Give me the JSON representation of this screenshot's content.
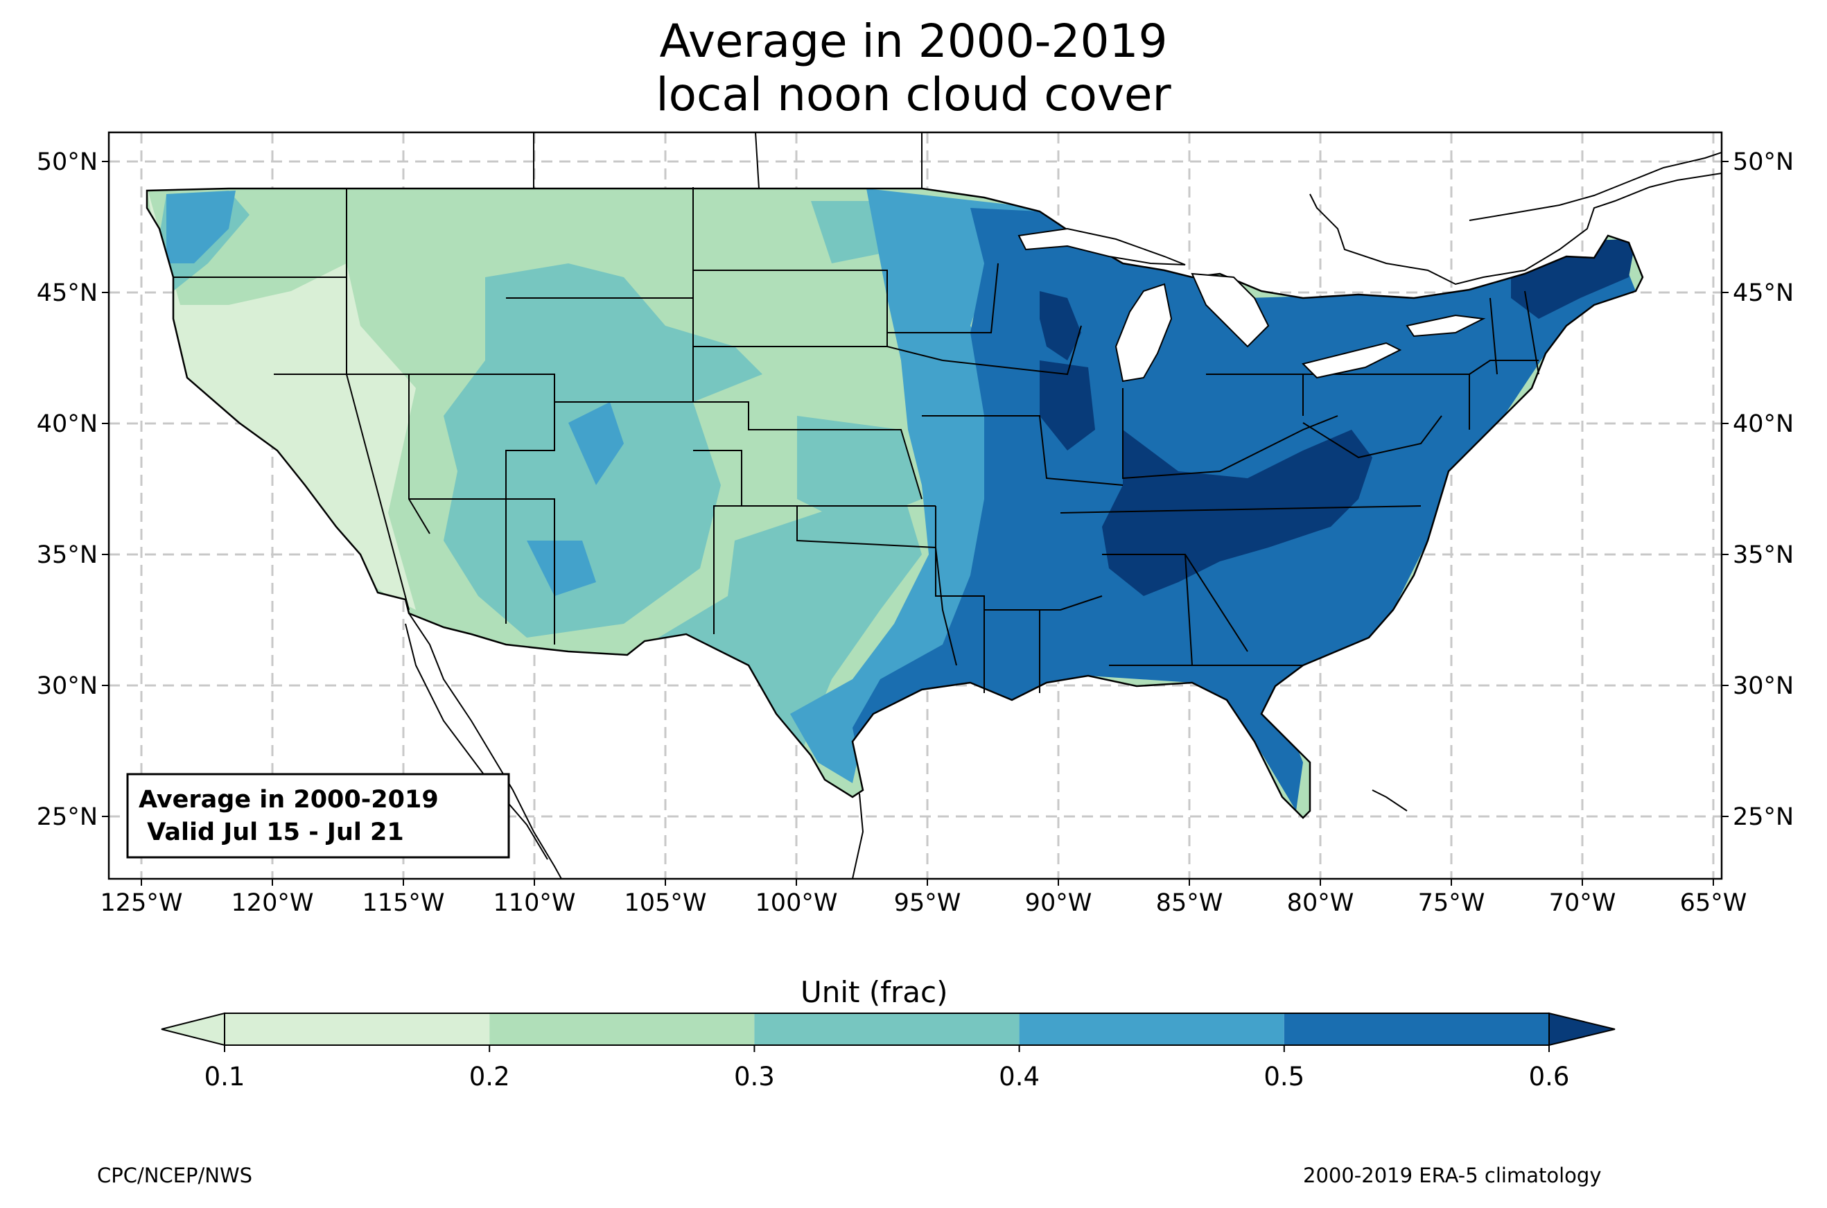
{
  "title_line1": "Average in 2000-2019",
  "title_line2": "local noon cloud cover",
  "map": {
    "lat_ticks": [
      "50°N",
      "45°N",
      "40°N",
      "35°N",
      "30°N",
      "25°N"
    ],
    "lon_ticks": [
      "125°W",
      "120°W",
      "115°W",
      "110°W",
      "105°W",
      "100°W",
      "95°W",
      "90°W",
      "85°W",
      "80°W",
      "75°W",
      "70°W",
      "65°W"
    ],
    "info_box_line1": "Average in 2000-2019",
    "info_box_line2": " Valid Jul 15 - Jul 21"
  },
  "colorbar": {
    "title": "Unit (frac)",
    "ticks": [
      "0.1",
      "0.2",
      "0.3",
      "0.4",
      "0.5",
      "0.6"
    ],
    "colors": [
      "#d9efd6",
      "#b0dfb9",
      "#77c6c0",
      "#43a2cb",
      "#1a6eb0",
      "#083b79"
    ]
  },
  "footer": {
    "left": "CPC/NCEP/NWS",
    "right": "2000-2019 ERA-5 climatology"
  }
}
